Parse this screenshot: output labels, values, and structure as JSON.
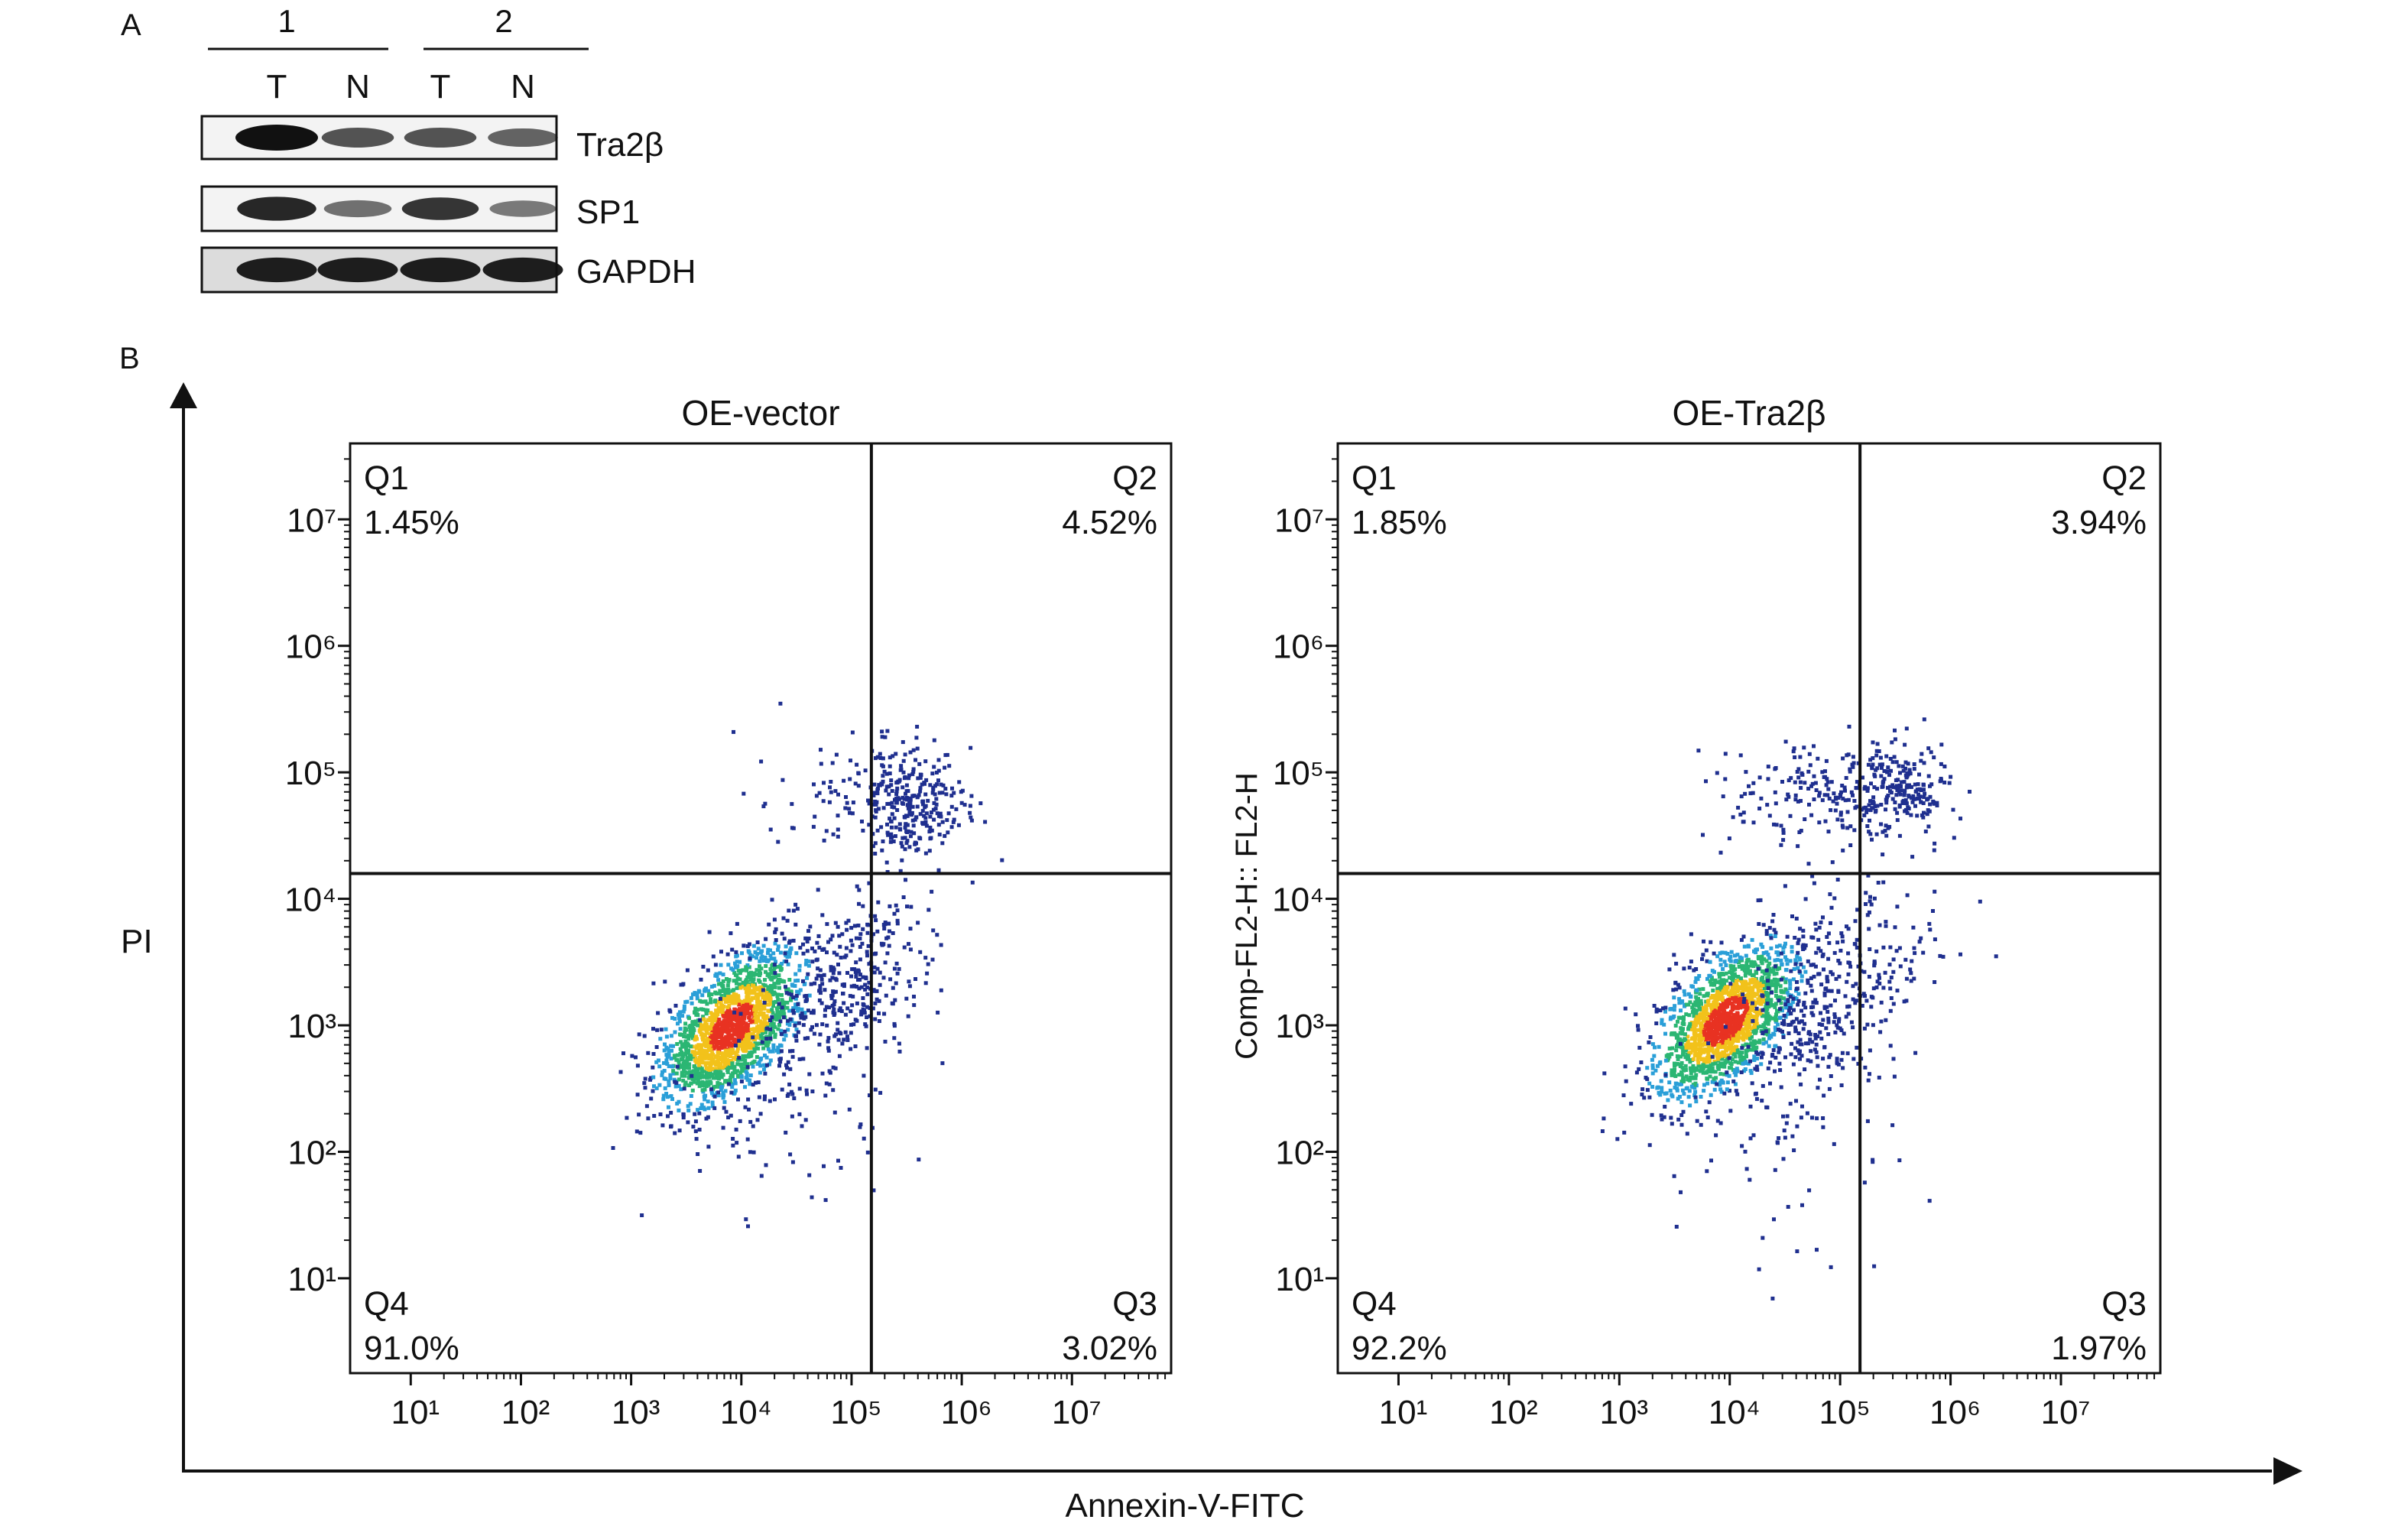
{
  "panel_a": {
    "label": "A",
    "groups": [
      {
        "name": "1",
        "lanes": [
          "T",
          "N"
        ]
      },
      {
        "name": "2",
        "lanes": [
          "T",
          "N"
        ]
      }
    ],
    "blots": [
      {
        "label": "Tra2β",
        "band_intensity": [
          1.0,
          0.55,
          0.55,
          0.45
        ]
      },
      {
        "label": "SP1",
        "band_intensity": [
          0.85,
          0.35,
          0.75,
          0.3
        ]
      },
      {
        "label": "GAPDH",
        "band_intensity": [
          0.9,
          0.9,
          0.9,
          0.9
        ]
      }
    ]
  },
  "panel_b": {
    "label": "B",
    "y_axis_label": "PI",
    "x_axis_label": "Annexin-V-FITC",
    "inner_y_label": "Comp-FL2-H:: FL2-H",
    "colors": {
      "axis": "#111111",
      "gate": "#111111",
      "low_density": "#1f2f8f",
      "mid_density": "#2bb673",
      "high_density": "#e83222"
    }
  },
  "chart_data": [
    {
      "type": "scatter",
      "title": "OE-vector",
      "x_scale": "log",
      "y_scale": "log",
      "x_ticks": [
        "10¹",
        "10²",
        "10³",
        "10⁴",
        "10⁵",
        "10⁶",
        "10⁷"
      ],
      "y_ticks": [
        "10⁷",
        "10⁶",
        "10⁵",
        "10⁴",
        "10³",
        "10²",
        "10¹"
      ],
      "xlim": [
        0.45,
        7.9
      ],
      "ylim": [
        0.25,
        7.6
      ],
      "gate_x": 151356,
      "gate_y": 15849,
      "quadrants": [
        {
          "name": "Q1",
          "value": "1.45%"
        },
        {
          "name": "Q2",
          "value": "4.52%"
        },
        {
          "name": "Q3",
          "value": "3.02%"
        },
        {
          "name": "Q4",
          "value": "91.0%"
        }
      ]
    },
    {
      "type": "scatter",
      "title": "OE-Tra2β",
      "x_scale": "log",
      "y_scale": "log",
      "x_ticks": [
        "10¹",
        "10²",
        "10³",
        "10⁴",
        "10⁵",
        "10⁶",
        "10⁷"
      ],
      "y_ticks": [
        "10⁷",
        "10⁶",
        "10⁵",
        "10⁴",
        "10³",
        "10²",
        "10¹"
      ],
      "xlim": [
        0.45,
        7.9
      ],
      "ylim": [
        0.25,
        7.6
      ],
      "gate_x": 151356,
      "gate_y": 15849,
      "quadrants": [
        {
          "name": "Q1",
          "value": "1.85%"
        },
        {
          "name": "Q2",
          "value": "3.94%"
        },
        {
          "name": "Q3",
          "value": "1.97%"
        },
        {
          "name": "Q4",
          "value": "92.2%"
        }
      ]
    }
  ]
}
